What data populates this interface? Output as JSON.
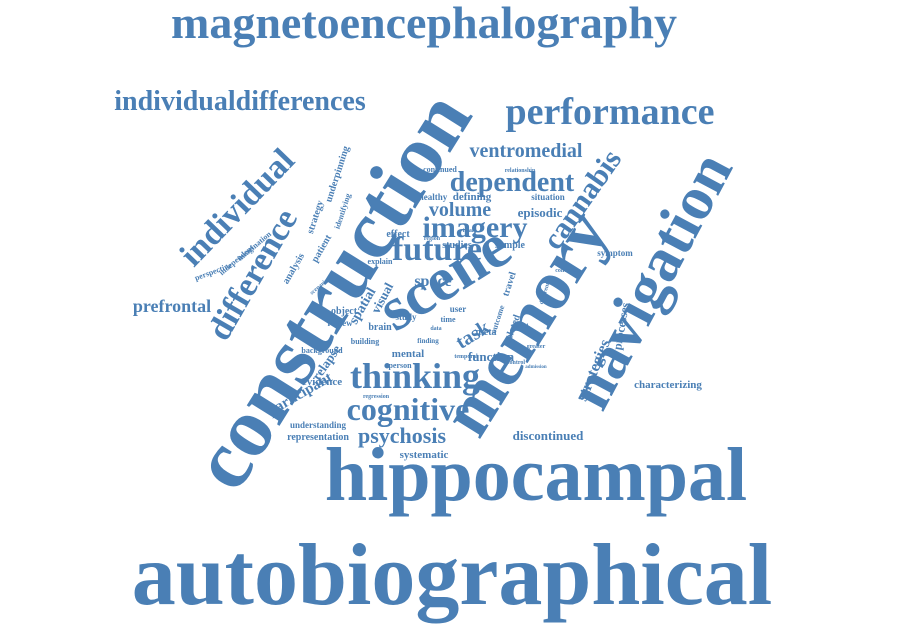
{
  "colors": {
    "word": "#4a7fb5",
    "background": "#ffffff"
  },
  "cloud": {
    "words": [
      {
        "text": "autobiographical"
      },
      {
        "text": "hippocampal"
      },
      {
        "text": "magnetoencephalography"
      },
      {
        "text": "construction"
      },
      {
        "text": "memory"
      },
      {
        "text": "navigation"
      },
      {
        "text": "scene"
      },
      {
        "text": "performance"
      },
      {
        "text": "individualdifferences"
      },
      {
        "text": "individual"
      },
      {
        "text": "difference"
      },
      {
        "text": "thinking"
      },
      {
        "text": "cognitive"
      },
      {
        "text": "future"
      },
      {
        "text": "imagery"
      },
      {
        "text": "cannabis"
      },
      {
        "text": "dependent"
      },
      {
        "text": "psychosis"
      },
      {
        "text": "ventromedial"
      },
      {
        "text": "volume"
      },
      {
        "text": "prefrontal"
      },
      {
        "text": "strategies"
      },
      {
        "text": "task"
      },
      {
        "text": "space"
      },
      {
        "text": "episodic"
      },
      {
        "text": "function"
      },
      {
        "text": "spatial"
      },
      {
        "text": "participant"
      },
      {
        "text": "characterizing"
      },
      {
        "text": "discontinued"
      },
      {
        "text": "systematic"
      },
      {
        "text": "relapse"
      },
      {
        "text": "processes"
      },
      {
        "text": "representation"
      },
      {
        "text": "visual"
      },
      {
        "text": "mental"
      },
      {
        "text": "evidence"
      },
      {
        "text": "understanding"
      },
      {
        "text": "defining"
      },
      {
        "text": "situation"
      },
      {
        "text": "healthy"
      },
      {
        "text": "effect"
      },
      {
        "text": "studies"
      },
      {
        "text": "sample"
      },
      {
        "text": "symptom"
      },
      {
        "text": "underpinning"
      },
      {
        "text": "strategy"
      },
      {
        "text": "identifying"
      },
      {
        "text": "imagination"
      },
      {
        "text": "independent"
      },
      {
        "text": "perspective"
      },
      {
        "text": "analysis"
      },
      {
        "text": "patient"
      },
      {
        "text": "object"
      },
      {
        "text": "explain"
      },
      {
        "text": "review"
      },
      {
        "text": "brain"
      },
      {
        "text": "study"
      },
      {
        "text": "user"
      },
      {
        "text": "time"
      },
      {
        "text": "meta"
      },
      {
        "text": "related"
      },
      {
        "text": "travel"
      },
      {
        "text": "outcome"
      },
      {
        "text": "building"
      },
      {
        "text": "background"
      },
      {
        "text": "finding"
      },
      {
        "text": "person"
      },
      {
        "text": "regression"
      },
      {
        "text": "continued"
      },
      {
        "text": "relationship"
      },
      {
        "text": "concrete"
      },
      {
        "text": "different"
      },
      {
        "text": "scenario"
      },
      {
        "text": "admission"
      },
      {
        "text": "greater"
      },
      {
        "text": "control"
      },
      {
        "text": "neural"
      },
      {
        "text": "temporal"
      },
      {
        "text": "data"
      },
      {
        "text": "region"
      },
      {
        "text": "trial"
      }
    ]
  }
}
